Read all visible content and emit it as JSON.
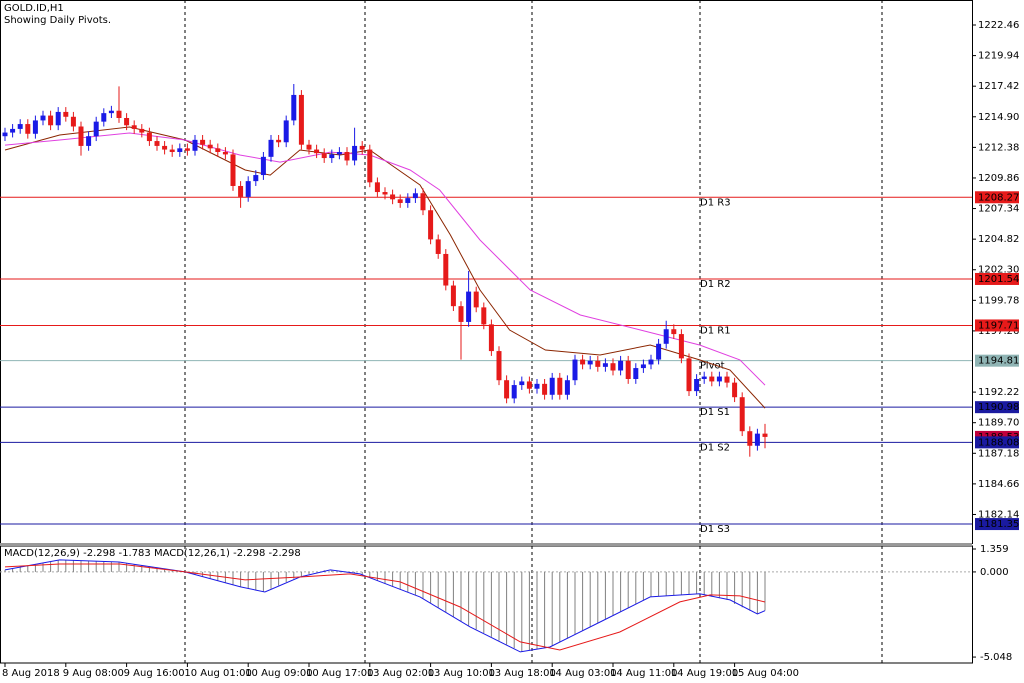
{
  "chart_data": {
    "type": "candlestick",
    "title": "GOLD.ID,H1",
    "subtitle": "Showing Daily Pivots.",
    "categories": [
      "8 Aug 2018",
      null,
      null,
      null,
      null,
      null,
      null,
      null,
      "9 Aug 08:00",
      null,
      null,
      null,
      null,
      null,
      null,
      null,
      "9 Aug 16:00",
      null,
      null,
      null,
      null,
      null,
      null,
      null,
      "10 Aug 01:00",
      null,
      null,
      null,
      null,
      null,
      null,
      null,
      "10 Aug 09:00",
      null,
      null,
      null,
      null,
      null,
      null,
      null,
      "10 Aug 17:00",
      null,
      null,
      null,
      null,
      null,
      null,
      null,
      "13 Aug 02:00",
      null,
      null,
      null,
      null,
      null,
      null,
      null,
      "13 Aug 10:00",
      null,
      null,
      null,
      null,
      null,
      null,
      null,
      "13 Aug 18:00",
      null,
      null,
      null,
      null,
      null,
      null,
      null,
      "14 Aug 03:00",
      null,
      null,
      null,
      null,
      null,
      null,
      null,
      "14 Aug 11:00",
      null,
      null,
      null,
      null,
      null,
      null,
      null,
      "14 Aug 19:00",
      null,
      null,
      null,
      null,
      null,
      null,
      null,
      "15 Aug 04:00",
      null,
      null,
      null,
      null
    ],
    "open": [
      1213.3,
      1213.6,
      1213.9,
      1214.3,
      1213.5,
      1214.6,
      1215.0,
      1214.2,
      1215.3,
      1214.9,
      1214.1,
      1212.5,
      1213.3,
      1214.5,
      1215.2,
      1215.4,
      1214.8,
      1214.2,
      1213.9,
      1213.6,
      1212.9,
      1212.5,
      1212.2,
      1212.0,
      1212.3,
      1212.1,
      1213.0,
      1212.6,
      1212.3,
      1212.0,
      1211.8,
      1209.2,
      1208.3,
      1209.6,
      1210.1,
      1211.6,
      1213.0,
      1212.8,
      1214.6,
      1216.7,
      1212.6,
      1212.2,
      1211.9,
      1211.5,
      1211.8,
      1212.0,
      1211.3,
      1212.5,
      1212.2,
      1209.5,
      1208.7,
      1208.5,
      1208.1,
      1207.8,
      1208.2,
      1208.6,
      1207.2,
      1204.8,
      1203.6,
      1201.0,
      1199.3,
      1198.0,
      1200.5,
      1199.2,
      1197.8,
      1195.6,
      1193.2,
      1191.7,
      1192.8,
      1193.1,
      1192.5,
      1192.9,
      1192.0,
      1193.4,
      1192.0,
      1193.2,
      1194.9,
      1194.5,
      1194.8,
      1194.3,
      1194.6,
      1194.0,
      1194.8,
      1193.3,
      1194.2,
      1194.5,
      1194.9,
      1196.2,
      1197.4,
      1197.0,
      1195.0,
      1192.3,
      1193.3,
      1193.5,
      1193.1,
      1193.5,
      1193.0,
      1191.8,
      1189.0,
      1187.8,
      1188.8
    ],
    "high": [
      1214.0,
      1214.3,
      1214.7,
      1214.7,
      1215.0,
      1215.4,
      1215.4,
      1215.7,
      1215.7,
      1215.3,
      1214.5,
      1213.7,
      1214.9,
      1215.6,
      1215.8,
      1217.4,
      1215.2,
      1214.6,
      1214.3,
      1214.0,
      1213.3,
      1212.9,
      1212.6,
      1212.7,
      1212.7,
      1213.4,
      1213.4,
      1213.0,
      1212.7,
      1212.4,
      1212.2,
      1209.6,
      1210.0,
      1210.5,
      1212.0,
      1213.4,
      1213.4,
      1215.0,
      1217.6,
      1217.1,
      1213.0,
      1212.6,
      1212.3,
      1212.2,
      1212.4,
      1212.4,
      1214.0,
      1212.9,
      1212.6,
      1209.9,
      1209.1,
      1208.9,
      1208.5,
      1208.6,
      1209.0,
      1209.0,
      1207.6,
      1205.2,
      1204.0,
      1201.4,
      1199.7,
      1202.2,
      1200.9,
      1199.6,
      1198.2,
      1196.0,
      1193.6,
      1193.2,
      1193.5,
      1193.5,
      1193.3,
      1193.3,
      1193.8,
      1193.8,
      1193.6,
      1195.3,
      1195.3,
      1195.2,
      1195.2,
      1195.0,
      1195.0,
      1195.2,
      1195.2,
      1194.6,
      1194.9,
      1195.3,
      1196.6,
      1198.1,
      1197.8,
      1197.4,
      1195.4,
      1193.7,
      1193.9,
      1193.9,
      1193.9,
      1193.9,
      1193.4,
      1192.2,
      1189.4,
      1189.2,
      1189.6
    ],
    "low": [
      1212.9,
      1213.2,
      1213.5,
      1213.1,
      1213.1,
      1214.2,
      1213.8,
      1213.8,
      1214.5,
      1213.7,
      1211.7,
      1212.1,
      1212.9,
      1214.1,
      1214.8,
      1214.4,
      1213.8,
      1213.5,
      1213.2,
      1212.5,
      1212.1,
      1211.8,
      1211.6,
      1211.6,
      1211.7,
      1211.7,
      1212.2,
      1211.9,
      1211.6,
      1211.4,
      1208.8,
      1207.4,
      1207.9,
      1209.2,
      1209.7,
      1211.2,
      1212.4,
      1212.4,
      1214.2,
      1212.2,
      1211.8,
      1211.5,
      1211.1,
      1211.1,
      1211.4,
      1210.9,
      1210.9,
      1211.8,
      1209.1,
      1208.3,
      1208.1,
      1207.7,
      1207.4,
      1207.4,
      1207.8,
      1206.8,
      1204.4,
      1203.2,
      1200.6,
      1198.9,
      1194.9,
      1197.6,
      1198.8,
      1197.4,
      1195.2,
      1192.8,
      1191.3,
      1191.3,
      1192.4,
      1192.1,
      1192.1,
      1191.6,
      1191.6,
      1191.6,
      1191.6,
      1192.8,
      1194.1,
      1194.1,
      1193.9,
      1193.9,
      1193.6,
      1193.6,
      1192.9,
      1192.9,
      1193.8,
      1194.1,
      1194.5,
      1195.8,
      1196.6,
      1194.6,
      1191.9,
      1191.9,
      1192.9,
      1192.7,
      1192.7,
      1192.6,
      1191.4,
      1188.6,
      1186.9,
      1187.4,
      1187.6
    ],
    "close": [
      1213.6,
      1213.9,
      1214.3,
      1213.5,
      1214.6,
      1215.0,
      1214.2,
      1215.3,
      1214.9,
      1214.1,
      1212.5,
      1213.3,
      1214.5,
      1215.2,
      1215.4,
      1214.8,
      1214.2,
      1213.9,
      1213.6,
      1212.9,
      1212.5,
      1212.2,
      1212.0,
      1212.3,
      1212.1,
      1213.0,
      1212.6,
      1212.3,
      1212.0,
      1211.8,
      1209.2,
      1208.3,
      1209.6,
      1210.1,
      1211.6,
      1213.0,
      1212.8,
      1214.6,
      1216.7,
      1212.6,
      1212.2,
      1211.9,
      1211.5,
      1211.8,
      1212.0,
      1211.3,
      1212.5,
      1212.2,
      1209.5,
      1208.7,
      1208.5,
      1208.1,
      1207.8,
      1208.2,
      1208.6,
      1207.2,
      1204.8,
      1203.6,
      1201.0,
      1199.3,
      1198.0,
      1200.5,
      1199.2,
      1197.8,
      1195.6,
      1193.2,
      1191.7,
      1192.8,
      1193.1,
      1192.5,
      1192.9,
      1192.0,
      1193.4,
      1192.0,
      1193.2,
      1194.9,
      1194.5,
      1194.8,
      1194.3,
      1194.6,
      1194.0,
      1194.8,
      1193.3,
      1194.2,
      1194.5,
      1194.9,
      1196.2,
      1197.4,
      1197.0,
      1195.0,
      1192.3,
      1193.3,
      1193.5,
      1193.1,
      1193.5,
      1193.0,
      1191.8,
      1189.0,
      1187.8,
      1188.8,
      1188.53
    ],
    "up_color": "#1a1ae6",
    "down_color": "#e61a1a",
    "ylim": [
      1179.79,
      1224.52
    ],
    "yticks": [
      1222.46,
      1219.94,
      1217.42,
      {
        "value": 1214.9,
        "label": "1214.90"
      },
      1212.38,
      1209.86,
      1207.34,
      1204.82,
      {
        "value": 1202.3,
        "label": "1202.30"
      },
      1199.78,
      1197.26,
      1192.22,
      {
        "value": 1189.7,
        "label": "1189.70"
      },
      1187.18,
      1184.66,
      1182.14
    ],
    "current_price": 1188.53,
    "current_price_color": "#c0003c",
    "pivots": [
      {
        "label": "D1 R3",
        "value": 1208.27,
        "color": "#e61a1a"
      },
      {
        "label": "D1 R2",
        "value": 1201.54,
        "color": "#e61a1a"
      },
      {
        "label": "D1 R1",
        "value": 1197.71,
        "color": "#e61a1a"
      },
      {
        "label": "Pivot",
        "value": 1194.81,
        "color": "#8fb4b4"
      },
      {
        "label": "D1 S1",
        "value": 1190.98,
        "color": "#1a1aa0"
      },
      {
        "label": "D1 S2",
        "value": 1188.08,
        "color": "#1a1aa0"
      },
      {
        "label": "D1 S3",
        "value": 1181.35,
        "color": "#1a1aa0"
      }
    ],
    "moving_averages": [
      {
        "color": "#8b2500",
        "x": [
          0,
          7.2,
          16.4,
          23.7,
          31.6,
          34.9,
          38.8,
          44.1,
          48.0,
          54.6,
          58.6,
          62.5,
          66.4,
          71.1,
          78.3,
          84.9,
          91.4,
          95.4,
          100
        ],
        "values": [
          1212.16,
          1213.4,
          1214.06,
          1212.99,
          1210.52,
          1210.1,
          1212.16,
          1211.75,
          1212.16,
          1209.28,
          1205.16,
          1200.63,
          1197.34,
          1195.69,
          1195.28,
          1196.1,
          1194.87,
          1194.04,
          1190.9
        ]
      },
      {
        "color": "#e040e0",
        "x": [
          0,
          7.2,
          16.4,
          23.7,
          30.9,
          36.2,
          42.8,
          48.0,
          53.3,
          57.2,
          62.5,
          69.1,
          75.7,
          83.6,
          91.4,
          96.7,
          100
        ],
        "values": [
          1212.57,
          1212.99,
          1213.56,
          1212.99,
          1211.75,
          1211.17,
          1211.99,
          1211.75,
          1210.52,
          1208.87,
          1204.75,
          1200.63,
          1198.57,
          1197.34,
          1196.1,
          1194.87,
          1192.8
        ]
      }
    ],
    "macd": {
      "title": "MACD(12,26,9) -2.298 -1.783 MACD(12,26,1) -2.298 -2.298",
      "ylim": [
        -5.4,
        1.537
      ],
      "yticks": [
        1.359,
        {
          "value": 0,
          "label": "0.000"
        },
        -5.048
      ],
      "histogram_color": "#808080",
      "histogram": [
        0.12,
        0.2,
        0.28,
        0.36,
        0.45,
        0.53,
        0.61,
        0.69,
        0.7,
        0.69,
        0.67,
        0.66,
        0.64,
        0.63,
        0.61,
        0.59,
        0.52,
        0.45,
        0.38,
        0.31,
        0.25,
        0.18,
        0.11,
        0.04,
        -0.03,
        -0.15,
        -0.28,
        -0.4,
        -0.52,
        -0.65,
        -0.77,
        -0.89,
        -0.98,
        -1.08,
        -1.17,
        -1.0,
        -0.8,
        -0.6,
        -0.4,
        -0.25,
        -0.13,
        0.0,
        0.1,
        0.08,
        0.02,
        -0.04,
        -0.1,
        -0.2,
        -0.35,
        -0.53,
        -0.7,
        -0.87,
        -1.05,
        -1.22,
        -1.4,
        -1.6,
        -1.87,
        -2.14,
        -2.4,
        -2.67,
        -2.94,
        -3.2,
        -3.4,
        -3.62,
        -3.85,
        -4.07,
        -4.3,
        -4.52,
        -4.74,
        -4.67,
        -4.6,
        -4.52,
        -4.4,
        -4.17,
        -3.95,
        -3.72,
        -3.5,
        -3.27,
        -3.04,
        -2.82,
        -2.6,
        -2.37,
        -2.15,
        -1.92,
        -1.7,
        -1.47,
        -1.45,
        -1.42,
        -1.39,
        -1.36,
        -1.34,
        -1.31,
        -1.38,
        -1.47,
        -1.56,
        -1.66,
        -1.9,
        -2.1,
        -2.3,
        -2.49,
        -2.298
      ],
      "lines": [
        {
          "color": "#1a1ae6",
          "x": [
            0,
            7.2,
            15,
            23.7,
            31,
            34.2,
            38.8,
            42.8,
            46.7,
            54.6,
            61.2,
            67.8,
            71.7,
            78.3,
            84.9,
            91.4,
            95.4,
            99,
            100
          ],
          "values": [
            0.12,
            0.71,
            0.59,
            0,
            -0.89,
            -1.19,
            -0.3,
            0.12,
            -0.12,
            -1.48,
            -3.26,
            -4.74,
            -4.45,
            -2.97,
            -1.48,
            -1.3,
            -1.66,
            -2.49,
            -2.298
          ]
        },
        {
          "color": "#e61a1a",
          "x": [
            0,
            7.2,
            15.1,
            23.7,
            31.6,
            38.8,
            45.4,
            52.0,
            59.9,
            67.8,
            73.0,
            80.9,
            88.8,
            92.8,
            96.7,
            100
          ],
          "values": [
            0.3,
            0.47,
            0.47,
            0,
            -0.47,
            -0.3,
            -0.12,
            -0.59,
            -2.08,
            -4.15,
            -4.63,
            -3.56,
            -1.78,
            -1.36,
            -1.42,
            -1.783
          ]
        }
      ]
    }
  }
}
